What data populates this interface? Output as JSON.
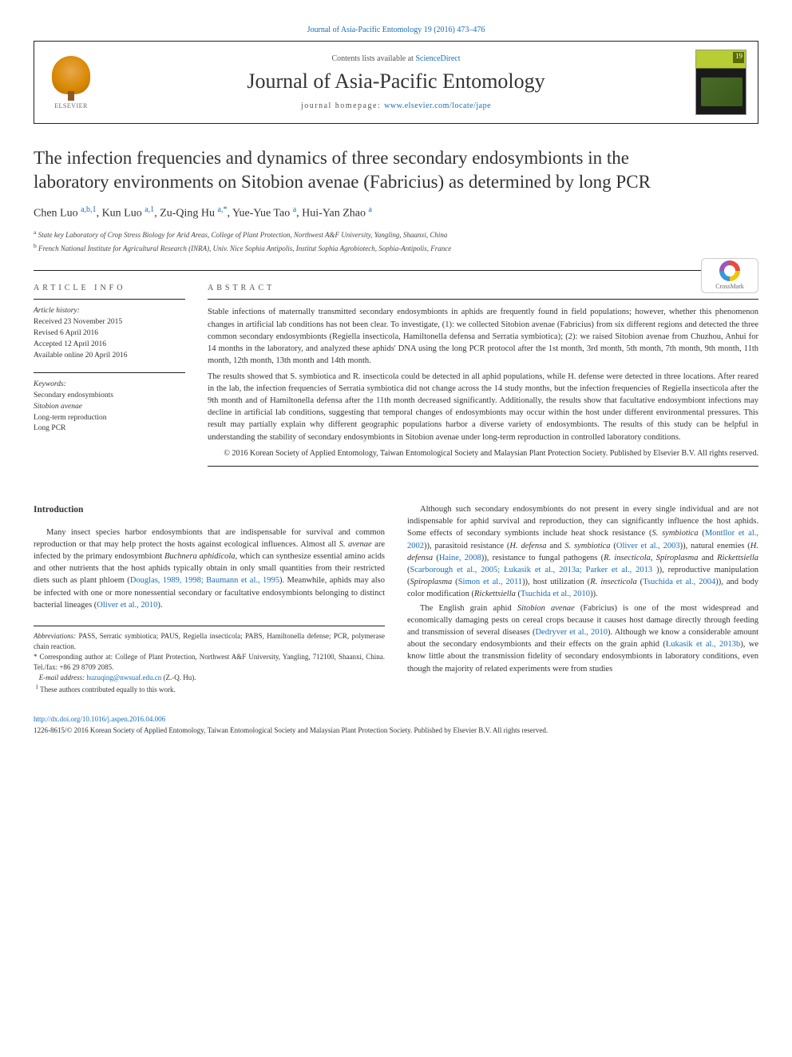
{
  "colors": {
    "link": "#1a6db5",
    "text": "#333333",
    "rule": "#222222",
    "background": "#ffffff"
  },
  "typography": {
    "body_fontsize_pt": 10.5,
    "title_fontsize_pt": 23,
    "journal_fontsize_pt": 26,
    "small_fontsize_pt": 9
  },
  "top_link": "Journal of Asia-Pacific Entomology 19 (2016) 473–476",
  "header": {
    "publisher": "ELSEVIER",
    "contents_prefix": "Contents lists available at ",
    "contents_link": "ScienceDirect",
    "journal_name": "Journal of Asia-Pacific Entomology",
    "homepage_prefix": "journal homepage: ",
    "homepage_link": "www.elsevier.com/locate/jape",
    "cover_issue": "19"
  },
  "crossmark_label": "CrossMark",
  "title": "The infection frequencies and dynamics of three secondary endosymbionts in the laboratory environments on Sitobion avenae (Fabricius) as determined by long PCR",
  "authors_html": "Chen Luo <sup>a,b,1</sup>, Kun Luo <sup>a,1</sup>, Zu-Qing Hu <sup>a,*</sup>, Yue-Yue Tao <sup>a</sup>, Hui-Yan Zhao <sup>a</sup>",
  "affiliations": {
    "a": "State key Laboratory of Crop Stress Biology for Arid Areas, College of Plant Protection, Northwest A&F University, Yangling, Shaanxi, China",
    "b": "French National Institute for Agricultural Research (INRA), Univ. Nice Sophia Antipolis, Institut Sophia Agrobiotech, Sophia-Antipolis, France"
  },
  "article_info": {
    "label": "ARTICLE INFO",
    "history_label": "Article history:",
    "history": [
      "Received 23 November 2015",
      "Revised 6 April 2016",
      "Accepted 12 April 2016",
      "Available online 20 April 2016"
    ],
    "keywords_label": "Keywords:",
    "keywords": [
      "Secondary endosymbionts",
      "Sitobion avenae",
      "Long-term reproduction",
      "Long PCR"
    ]
  },
  "abstract": {
    "label": "ABSTRACT",
    "p1": "Stable infections of maternally transmitted secondary endosymbionts in aphids are frequently found in field populations; however, whether this phenomenon changes in artificial lab conditions has not been clear. To investigate, (1): we collected Sitobion avenae (Fabricius) from six different regions and detected the three common secondary endosymbionts (Regiella insecticola, Hamiltonella defensa and Serratia symbiotica); (2): we raised Sitobion avenae from Chuzhou, Anhui for 14 months in the laboratory, and analyzed these aphids' DNA using the long PCR protocol after the 1st month, 3rd month, 5th month, 7th month, 9th month, 11th month, 12th month, 13th month and 14th month.",
    "p2": "The results showed that S. symbiotica and R. insecticola could be detected in all aphid populations, while H. defense were detected in three locations. After reared in the lab, the infection frequencies of Serratia symbiotica did not change across the 14 study months, but the infection frequencies of Regiella insecticola after the 9th month and of Hamiltonella defensa after the 11th month decreased significantly. Additionally, the results show that facultative endosymbiont infections may decline in artificial lab conditions, suggesting that temporal changes of endosymbionts may occur within the host under different environmental pressures. This result may partially explain why different geographic populations harbor a diverse variety of endosymbionts. The results of this study can be helpful in understanding the stability of secondary endosymbionts in Sitobion avenae under long-term reproduction in controlled laboratory conditions.",
    "copyright": "© 2016 Korean Society of Applied Entomology, Taiwan Entomological Society and Malaysian Plant Protection Society. Published by Elsevier B.V. All rights reserved."
  },
  "intro": {
    "heading": "Introduction",
    "left_p1": "Many insect species harbor endosymbionts that are indispensable for survival and common reproduction or that may help protect the hosts against ecological influences. Almost all S. avenae are infected by the primary endosymbiont Buchnera aphidicola, which can synthesize essential amino acids and other nutrients that the host aphids typically obtain in only small quantities from their restricted diets such as plant phloem (Douglas, 1989, 1998; Baumann et al., 1995). Meanwhile, aphids may also be infected with one or more nonessential secondary or facultative endosymbionts belonging to distinct bacterial lineages (Oliver et al., 2010).",
    "right_p1": "Although such secondary endosymbionts do not present in every single individual and are not indispensable for aphid survival and reproduction, they can significantly influence the host aphids. Some effects of secondary symbionts include heat shock resistance (S. symbiotica (Montllor et al., 2002)), parasitoid resistance (H. defensa and S. symbiotica (Oliver et al., 2003)), natural enemies (H. defensa (Haine, 2008)), resistance to fungal pathogens (R. insecticola, Spiroplasma and Rickettsiella (Scarborough et al., 2005; Łukasik et al., 2013a; Parker et al., 2013 )), reproductive manipulation (Spiroplasma (Simon et al., 2011)), host utilization (R. insecticola (Tsuchida et al., 2004)), and body color modification (Rickettsiella (Tsuchida et al., 2010)).",
    "right_p2": "The English grain aphid Sitobion avenae (Fabricius) is one of the most widespread and economically damaging pests on cereal crops because it causes host damage directly through feeding and transmission of several diseases (Dedryver et al., 2010). Although we know a considerable amount about the secondary endosymbionts and their effects on the grain aphid (Łukasik et al., 2013b), we know little about the transmission fidelity of secondary endosymbionts in laboratory conditions, even though the majority of related experiments were from studies"
  },
  "footnotes": {
    "abbrev_label": "Abbreviations:",
    "abbrev_text": "PASS, Serratic symbiotica; PAUS, Regiella insecticola; PABS, Hamiltonella defense; PCR, polymerase chain reaction.",
    "corresp_label": "* Corresponding author at:",
    "corresp_text": "College of Plant Protection, Northwest A&F University, Yangling, 712100, Shaanxi, China. Tel./fax: +86 29 8709 2085.",
    "email_label": "E-mail address:",
    "email": "huzuqing@nwsuaf.edu.cn",
    "email_owner": "(Z.-Q. Hu).",
    "equal": "These authors contributed equally to this work."
  },
  "bottom": {
    "doi": "http://dx.doi.org/10.1016/j.aspen.2016.04.006",
    "issn_line": "1226-8615/© 2016 Korean Society of Applied Entomology, Taiwan Entomological Society and Malaysian Plant Protection Society. Published by Elsevier B.V. All rights reserved."
  }
}
